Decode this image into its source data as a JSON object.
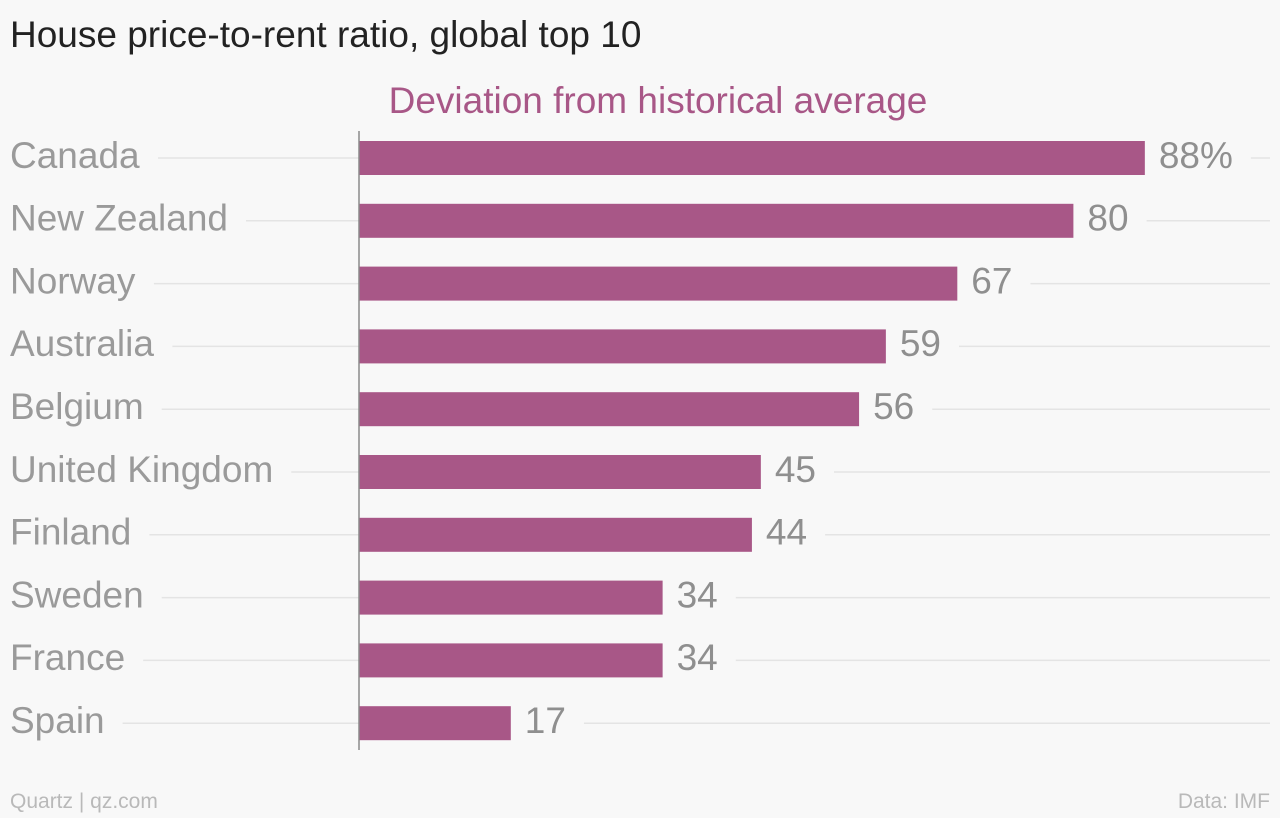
{
  "header": {
    "title": "House price-to-rent ratio, global top 10"
  },
  "chart_data": {
    "type": "bar",
    "orientation": "horizontal",
    "title": "House price-to-rent ratio, global top 10",
    "series": [
      {
        "name": "Deviation from historical average",
        "values": [
          88,
          80,
          67,
          59,
          56,
          45,
          44,
          34,
          34,
          17
        ]
      }
    ],
    "categories": [
      "Canada",
      "New Zealand",
      "Norway",
      "Australia",
      "Belgium",
      "United Kingdom",
      "Finland",
      "Sweden",
      "France",
      "Spain"
    ],
    "value_labels": [
      "88%",
      "80",
      "67",
      "59",
      "56",
      "45",
      "44",
      "34",
      "34",
      "17"
    ],
    "unit": "%",
    "xlim": [
      0,
      100
    ],
    "grid": true,
    "colors": {
      "bar": "#a85787",
      "series_label": "#a85787",
      "category_label": "#9a9a9a",
      "value_label": "#8f8f8f",
      "gridline": "#e4e4e4",
      "axis": "#8a8a8a"
    }
  },
  "footer": {
    "source": "Quartz | qz.com",
    "data_credit": "Data: IMF"
  }
}
